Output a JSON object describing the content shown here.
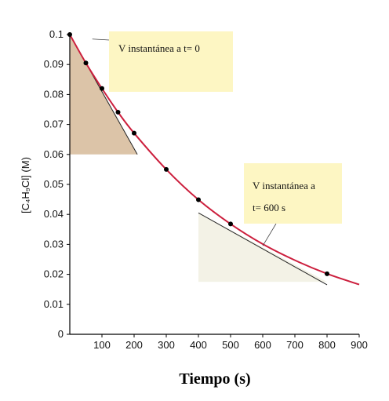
{
  "chart_data": {
    "type": "line",
    "xlabel": "Tiempo (s)",
    "ylabel": "[C₄H₉Cl] (M)",
    "xlim": [
      0,
      900
    ],
    "ylim": [
      0,
      0.1
    ],
    "x_ticks": [
      "100",
      "200",
      "300",
      "400",
      "500",
      "600",
      "700",
      "800",
      "900"
    ],
    "y_ticks": [
      "0",
      "0.01",
      "0.02",
      "0.03",
      "0.04",
      "0.05",
      "0.06",
      "0.07",
      "0.08",
      "0.09",
      "0.1"
    ],
    "grid": false,
    "series": [
      {
        "style": "curve",
        "color": "#cc1f3d",
        "x": [
          0,
          50,
          100,
          150,
          200,
          300,
          400,
          500,
          600,
          700,
          800,
          900
        ],
        "y": [
          0.1,
          0.0905,
          0.082,
          0.0741,
          0.0671,
          0.055,
          0.0449,
          0.0368,
          0.0301,
          0.0247,
          0.0202,
          0.0166
        ]
      },
      {
        "style": "points",
        "color": "#000000",
        "x": [
          0,
          50,
          100,
          150,
          200,
          300,
          400,
          500,
          800
        ],
        "y": [
          0.1,
          0.0905,
          0.082,
          0.0741,
          0.0671,
          0.055,
          0.0449,
          0.0368,
          0.0202
        ]
      }
    ],
    "annotations": [
      {
        "text_lines": [
          "V instantánea a t= 0"
        ],
        "tangent": {
          "x": [
            0,
            210
          ],
          "y": [
            0.1,
            0.06
          ]
        },
        "triangle": {
          "x_start": 0,
          "x_end": 210,
          "y_low": 0.06,
          "y_high": 0.1
        },
        "fill": "#dcc4a8",
        "box_color": "#fdf6c3"
      },
      {
        "text_lines": [
          "V instantánea a",
          "t= 600 s"
        ],
        "tangent": {
          "x": [
            400,
            800
          ],
          "y": [
            0.0405,
            0.0165
          ]
        },
        "triangle": {
          "x_start": 400,
          "x_end": 800,
          "y_low": 0.0175,
          "y_high": 0.0405
        },
        "fill": "#f3f2e6",
        "box_color": "#fdf6c3"
      }
    ]
  }
}
